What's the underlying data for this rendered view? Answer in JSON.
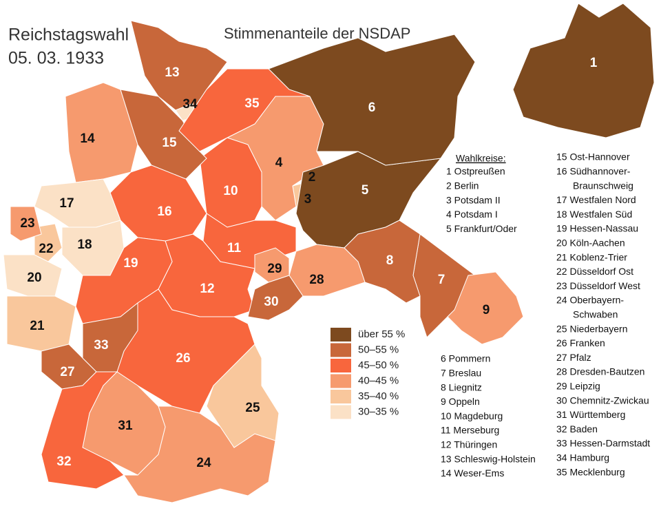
{
  "title": [
    "Reichstagswahl",
    "05. 03. 1933"
  ],
  "subtitle": "Stimmenanteile der NSDAP",
  "legend": [
    {
      "label": "über 55 %",
      "color": "#7d4a1f"
    },
    {
      "label": "50–55 %",
      "color": "#c8673a"
    },
    {
      "label": "45–50 %",
      "color": "#f8663d"
    },
    {
      "label": "40–45 %",
      "color": "#f69a6e"
    },
    {
      "label": "35–40 %",
      "color": "#f9c79c"
    },
    {
      "label": "30–35 %",
      "color": "#fbe1c6"
    }
  ],
  "regions": [
    {
      "label": "1",
      "color": "#7d4a1f"
    },
    {
      "label": "2",
      "color": "#fbe1c6"
    },
    {
      "label": "3",
      "color": "#f9c79c"
    },
    {
      "label": "4",
      "color": "#f69a6e"
    },
    {
      "label": "5",
      "color": "#7d4a1f"
    },
    {
      "label": "6",
      "color": "#7d4a1f"
    },
    {
      "label": "7",
      "color": "#c8673a"
    },
    {
      "label": "8",
      "color": "#c8673a"
    },
    {
      "label": "9",
      "color": "#f69a6e"
    },
    {
      "label": "10",
      "color": "#f8663d"
    },
    {
      "label": "11",
      "color": "#f8663d"
    },
    {
      "label": "12",
      "color": "#f8663d"
    },
    {
      "label": "13",
      "color": "#c8673a"
    },
    {
      "label": "14",
      "color": "#f69a6e"
    },
    {
      "label": "15",
      "color": "#c8673a"
    },
    {
      "label": "16",
      "color": "#f8663d"
    },
    {
      "label": "17",
      "color": "#fbe1c6"
    },
    {
      "label": "18",
      "color": "#fbe1c6"
    },
    {
      "label": "19",
      "color": "#f8663d"
    },
    {
      "label": "20",
      "color": "#fbe1c6"
    },
    {
      "label": "21",
      "color": "#f9c79c"
    },
    {
      "label": "22",
      "color": "#f9c79c"
    },
    {
      "label": "23",
      "color": "#f69a6e"
    },
    {
      "label": "24",
      "color": "#f69a6e"
    },
    {
      "label": "25",
      "color": "#f9c79c"
    },
    {
      "label": "26",
      "color": "#f8663d"
    },
    {
      "label": "27",
      "color": "#c8673a"
    },
    {
      "label": "28",
      "color": "#f69a6e"
    },
    {
      "label": "29",
      "color": "#f69a6e"
    },
    {
      "label": "30",
      "color": "#c8673a"
    },
    {
      "label": "31",
      "color": "#f69a6e"
    },
    {
      "label": "32",
      "color": "#f8663d"
    },
    {
      "label": "33",
      "color": "#c8673a"
    },
    {
      "label": "34",
      "color": "#fbe1c6"
    },
    {
      "label": "35",
      "color": "#f8663d"
    }
  ],
  "wahlkreise": {
    "heading": "Wahlkreise:",
    "columns": [
      [
        [
          "1 Ostpreußen"
        ],
        [
          "2 Berlin"
        ],
        [
          "3 Potsdam II"
        ],
        [
          "4 Potsdam I"
        ],
        [
          "5 Frankfurt/Oder"
        ]
      ],
      [
        [
          "15 Ost-Hannover"
        ],
        [
          "16 Südhannover-",
          "Braunschweig"
        ],
        [
          "17 Westfalen Nord"
        ],
        [
          "18 Westfalen Süd"
        ],
        [
          "19 Hessen-Nassau"
        ],
        [
          "20 Köln-Aachen"
        ],
        [
          "21 Koblenz-Trier"
        ],
        [
          "22 Düsseldorf Ost"
        ],
        [
          "23 Düsseldorf West"
        ],
        [
          "24 Oberbayern-",
          "Schwaben"
        ],
        [
          "25 Niederbayern"
        ],
        [
          "26 Franken"
        ],
        [
          "27 Pfalz"
        ],
        [
          "28 Dresden-Bautzen"
        ],
        [
          "29 Leipzig"
        ],
        [
          "30 Chemnitz-Zwickau"
        ],
        [
          "31 Württemberg"
        ],
        [
          "32 Baden"
        ],
        [
          "33 Hessen-Darmstadt"
        ],
        [
          "34 Hamburg"
        ],
        [
          "35 Mecklenburg"
        ]
      ],
      [
        [
          "6 Pommern"
        ],
        [
          "7 Breslau"
        ],
        [
          "8 Liegnitz"
        ],
        [
          "9 Oppeln"
        ],
        [
          "10 Magdeburg"
        ],
        [
          "11 Merseburg"
        ],
        [
          "12 Thüringen"
        ],
        [
          "13 Schleswig-Holstein"
        ],
        [
          "14 Weser-Ems"
        ]
      ]
    ]
  }
}
